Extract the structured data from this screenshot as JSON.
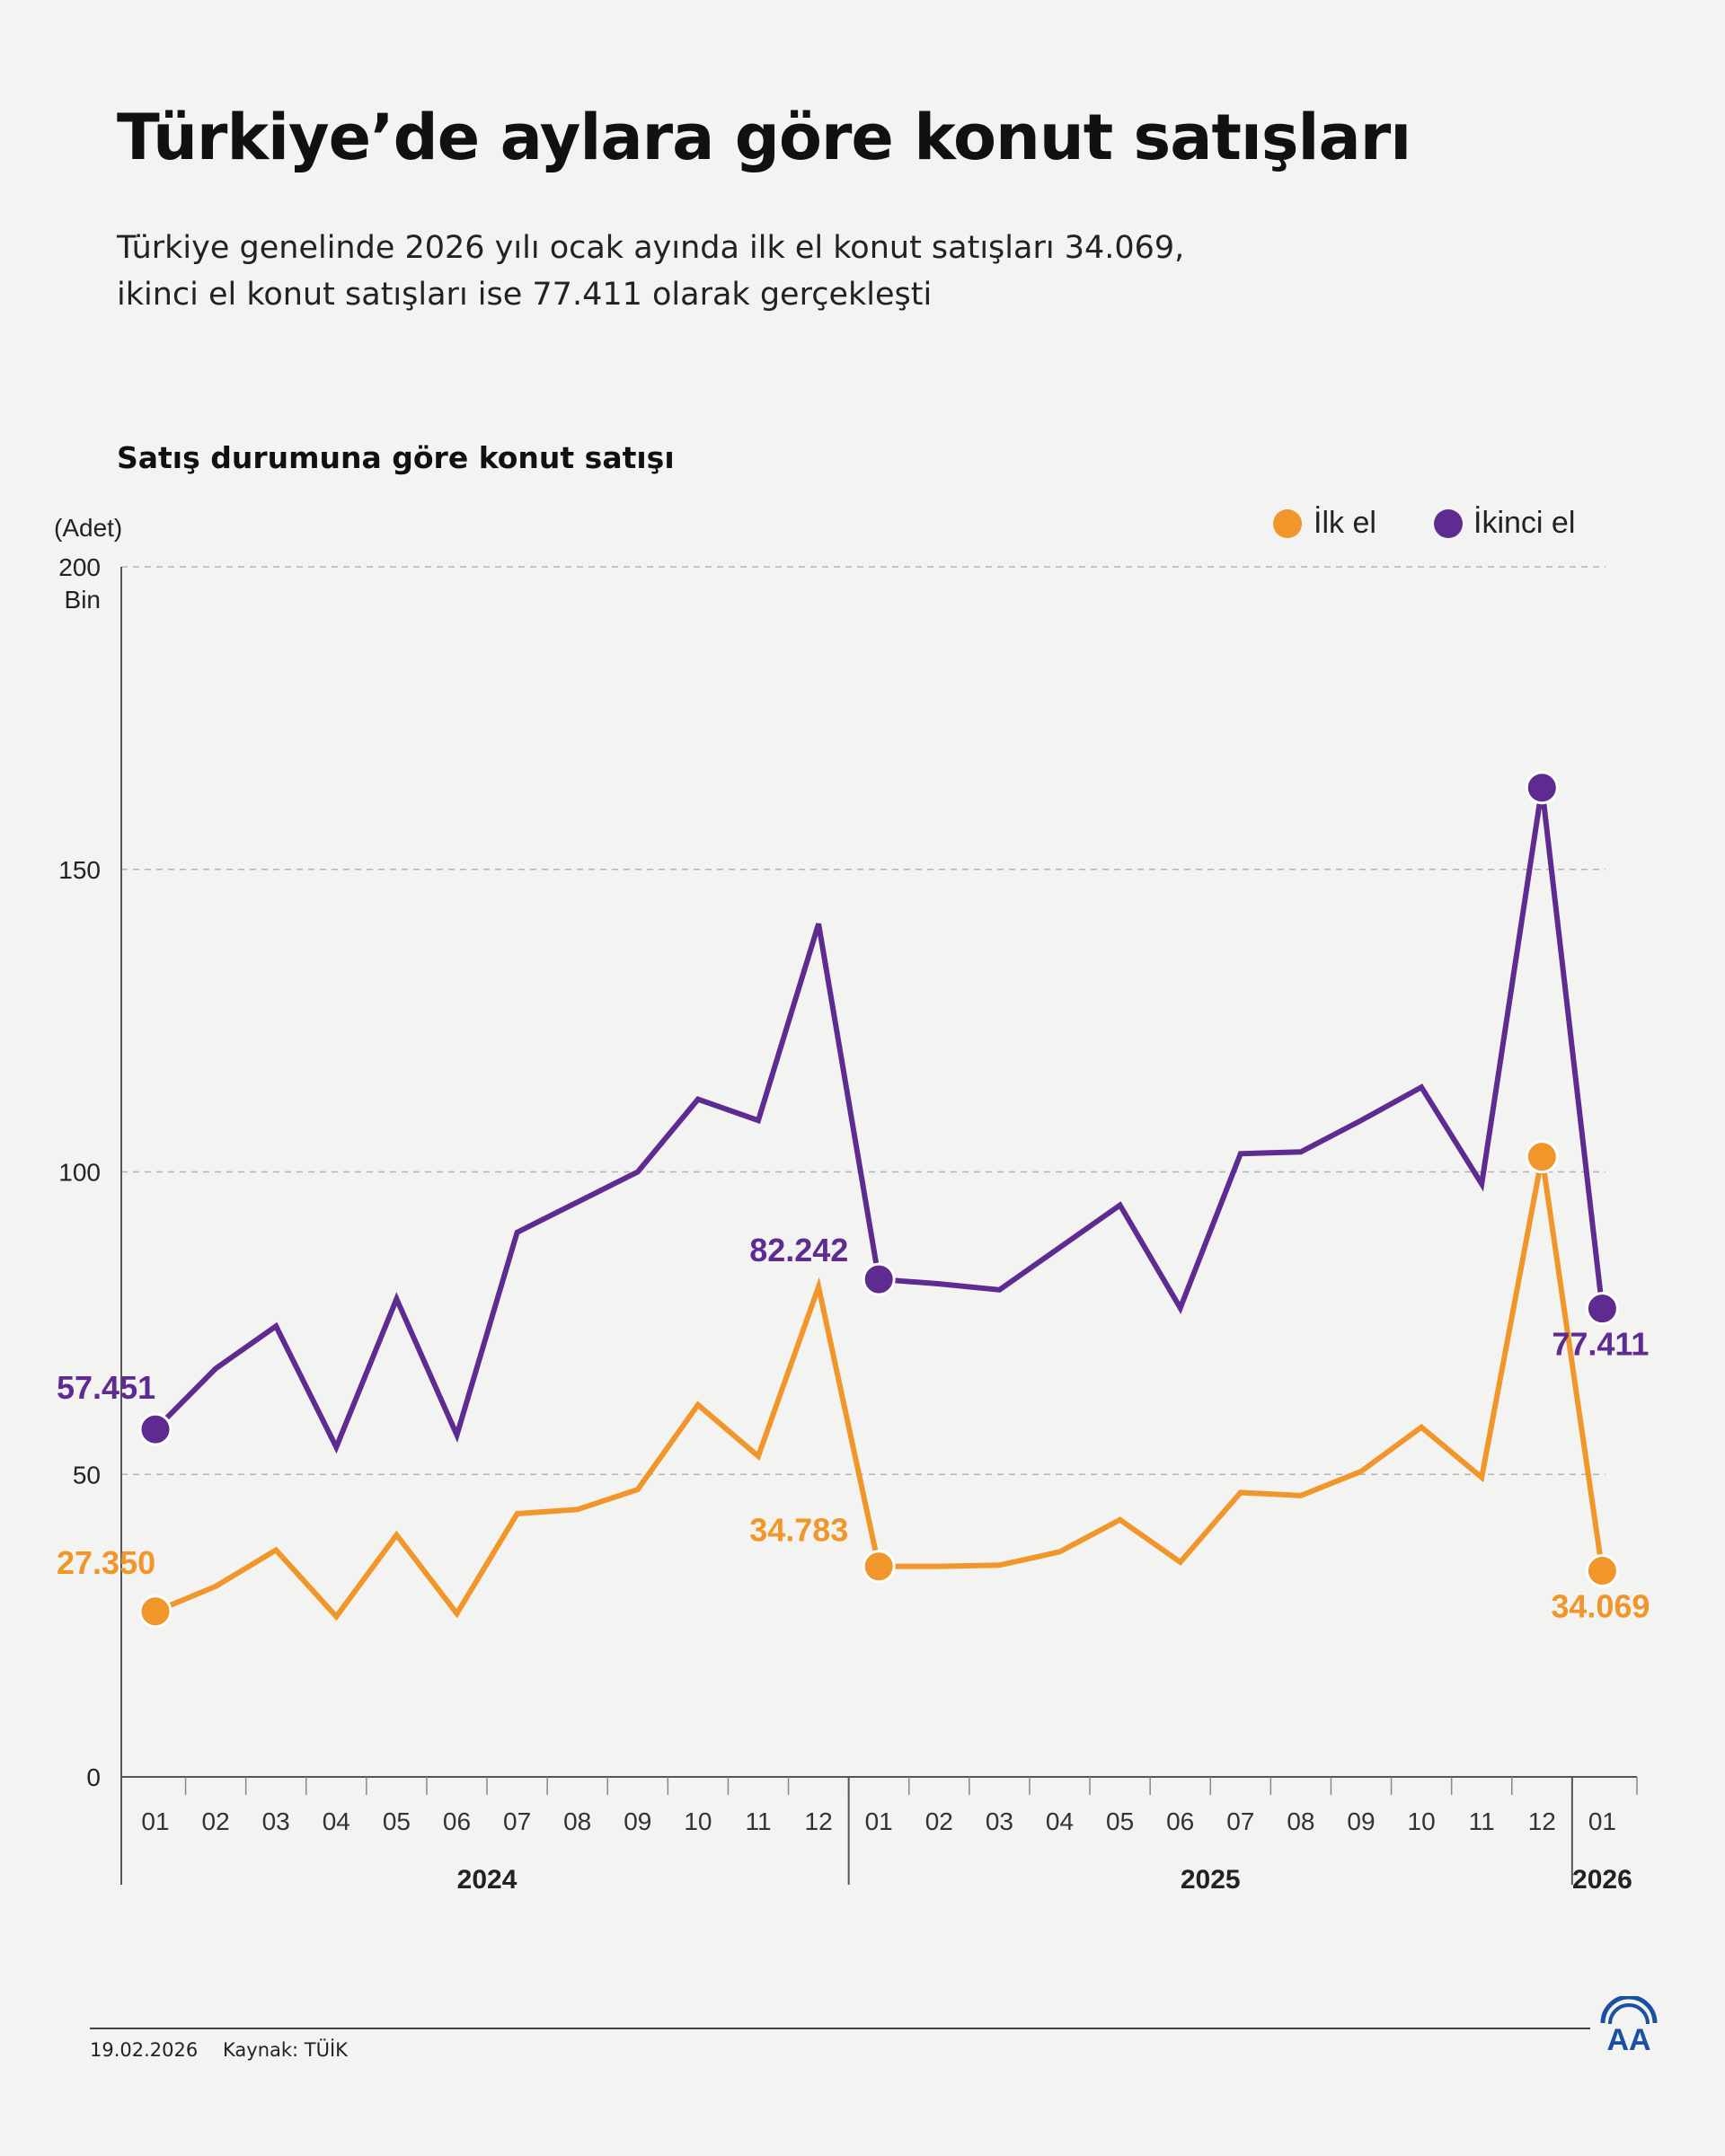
{
  "header": {
    "title": "Türkiye’de aylara göre konut satışları",
    "subtitle_line1": "Türkiye genelinde 2026 yılı ocak ayında ilk el konut satışları 34.069,",
    "subtitle_line2": "ikinci el konut satışları ise 77.411 olarak gerçekleşti"
  },
  "footer": {
    "date": "19.02.2026",
    "source": "Kaynak: TÜİK",
    "logo_text": "AA"
  },
  "colors": {
    "ilk_el": "#f0962a",
    "ikinci_el": "#5e2c91",
    "grid": "#b4b4b4",
    "axis": "#555555"
  },
  "chart_data": {
    "type": "line",
    "title": "Satış durumuna göre konut satışı",
    "ylabel": "(Adet)",
    "ylim": [
      0,
      200
    ],
    "yticks": [
      {
        "value": 0,
        "label": "0"
      },
      {
        "value": 50,
        "label": "50"
      },
      {
        "value": 100,
        "label": "100"
      },
      {
        "value": 150,
        "label": "150"
      },
      {
        "value": 200,
        "label": "200",
        "sublabel": "Bin"
      }
    ],
    "categories": [
      "01",
      "02",
      "03",
      "04",
      "05",
      "06",
      "07",
      "08",
      "09",
      "10",
      "11",
      "12",
      "01",
      "02",
      "03",
      "04",
      "05",
      "06",
      "07",
      "08",
      "09",
      "10",
      "11",
      "12",
      "01"
    ],
    "years": [
      {
        "label": "2024",
        "start": 0,
        "end": 11
      },
      {
        "label": "2025",
        "start": 12,
        "end": 23
      },
      {
        "label": "2026",
        "start": 24,
        "end": 24
      }
    ],
    "legend": [
      "İlk el",
      "İkinci el"
    ],
    "legend_position": "top-right",
    "series": [
      {
        "name": "İlk el",
        "color": "#f0962a",
        "values": [
          27.35,
          31.5,
          37.5,
          26.5,
          40.0,
          27.0,
          43.5,
          44.2,
          47.5,
          61.5,
          53.0,
          81.0,
          34.783,
          34.8,
          35.0,
          37.2,
          42.5,
          35.5,
          47.0,
          46.5,
          50.5,
          57.8,
          49.5,
          102.5,
          34.069
        ],
        "highlights": [
          {
            "index": 0,
            "label": "27.350"
          },
          {
            "index": 12,
            "label": "34.783"
          },
          {
            "index": 23,
            "label": ""
          },
          {
            "index": 24,
            "label": "34.069"
          }
        ]
      },
      {
        "name": "İkinci el",
        "color": "#5e2c91",
        "values": [
          57.451,
          67.5,
          74.5,
          54.5,
          79.0,
          56.5,
          90.0,
          95.0,
          100.0,
          112.0,
          108.5,
          141.0,
          82.242,
          81.5,
          80.5,
          87.5,
          94.5,
          77.5,
          103.0,
          103.3,
          108.5,
          114.0,
          98.0,
          163.5,
          77.411
        ],
        "highlights": [
          {
            "index": 0,
            "label": "57.451"
          },
          {
            "index": 12,
            "label": "82.242"
          },
          {
            "index": 23,
            "label": ""
          },
          {
            "index": 24,
            "label": "77.411"
          }
        ]
      }
    ]
  }
}
